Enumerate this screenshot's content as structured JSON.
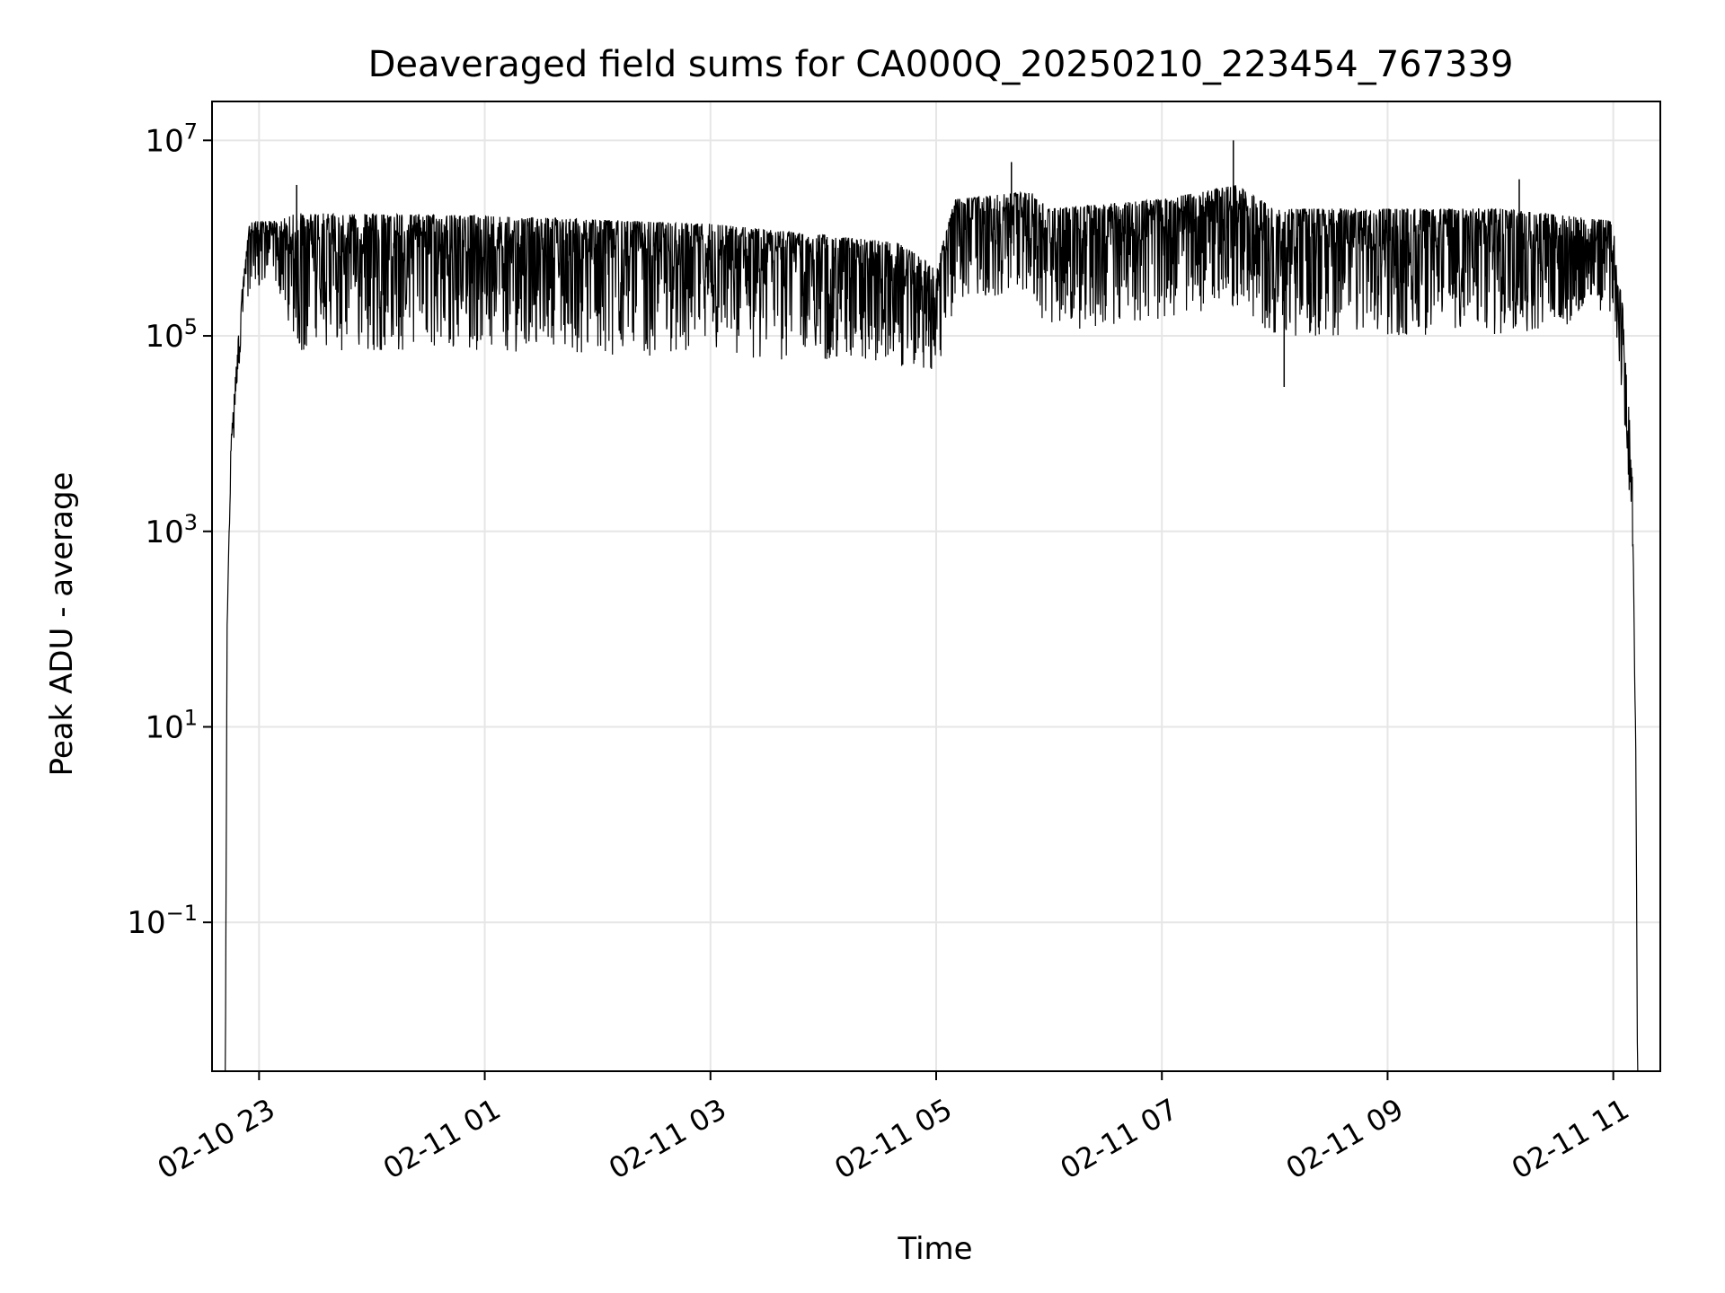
{
  "chart_data": {
    "type": "line",
    "title": "Deaveraged field sums for CA000Q_20250210_223454_767339",
    "xlabel": "Time",
    "ylabel": "Peak ADU - average",
    "yscale": "log",
    "ylim": [
      0.003,
      25000000
    ],
    "xlim": [
      "2025-02-10 22:35",
      "2025-02-11 11:25"
    ],
    "grid": true,
    "line_color": "#000000",
    "x_ticks": [
      {
        "value": "2025-02-10 23:00",
        "label": "02-10 23"
      },
      {
        "value": "2025-02-11 01:00",
        "label": "02-11 01"
      },
      {
        "value": "2025-02-11 03:00",
        "label": "02-11 03"
      },
      {
        "value": "2025-02-11 05:00",
        "label": "02-11 05"
      },
      {
        "value": "2025-02-11 07:00",
        "label": "02-11 07"
      },
      {
        "value": "2025-02-11 09:00",
        "label": "02-11 09"
      },
      {
        "value": "2025-02-11 11:00",
        "label": "02-11 11"
      }
    ],
    "y_ticks": [
      {
        "value": 0.1,
        "base": "10",
        "exp": "−1"
      },
      {
        "value": 10,
        "base": "10",
        "exp": "1"
      },
      {
        "value": 1000,
        "base": "10",
        "exp": "3"
      },
      {
        "value": 100000,
        "base": "10",
        "exp": "5"
      },
      {
        "value": 10000000,
        "base": "10",
        "exp": "7"
      }
    ],
    "series": [
      {
        "profile": [
          [
            "2025-02-10 22:42",
            0.001,
            0.001
          ],
          [
            "2025-02-10 22:43",
            100,
            100
          ],
          [
            "2025-02-10 22:45",
            3000,
            8000
          ],
          [
            "2025-02-10 22:48",
            20000,
            60000
          ],
          [
            "2025-02-10 22:51",
            100000,
            300000
          ],
          [
            "2025-02-10 22:55",
            300000,
            1500000
          ],
          [
            "2025-02-10 23:10",
            300000,
            1500000
          ],
          [
            "2025-02-10 23:20",
            70000,
            1800000
          ],
          [
            "2025-02-11 01:00",
            70000,
            1700000
          ],
          [
            "2025-02-11 03:00",
            60000,
            1400000
          ],
          [
            "2025-02-11 04:40",
            50000,
            900000
          ],
          [
            "2025-02-11 05:00",
            40000,
            500000
          ],
          [
            "2025-02-11 05:10",
            200000,
            2500000
          ],
          [
            "2025-02-11 05:50",
            300000,
            3000000
          ],
          [
            "2025-02-11 06:00",
            100000,
            2000000
          ],
          [
            "2025-02-11 07:00",
            150000,
            2500000
          ],
          [
            "2025-02-11 07:40",
            200000,
            3500000
          ],
          [
            "2025-02-11 08:00",
            100000,
            2000000
          ],
          [
            "2025-02-11 10:00",
            100000,
            2000000
          ],
          [
            "2025-02-11 11:00",
            150000,
            1500000
          ],
          [
            "2025-02-11 11:05",
            20000,
            200000
          ],
          [
            "2025-02-11 11:10",
            1000,
            5000
          ],
          [
            "2025-02-11 11:12",
            5,
            5
          ],
          [
            "2025-02-11 11:13",
            0.001,
            0.001
          ]
        ],
        "spikes": [
          [
            "2025-02-10 23:20",
            3500000
          ],
          [
            "2025-02-11 05:40",
            6000000
          ],
          [
            "2025-02-11 07:38",
            10000000
          ],
          [
            "2025-02-11 08:05",
            30000
          ],
          [
            "2025-02-11 10:10",
            4000000
          ]
        ]
      }
    ]
  }
}
